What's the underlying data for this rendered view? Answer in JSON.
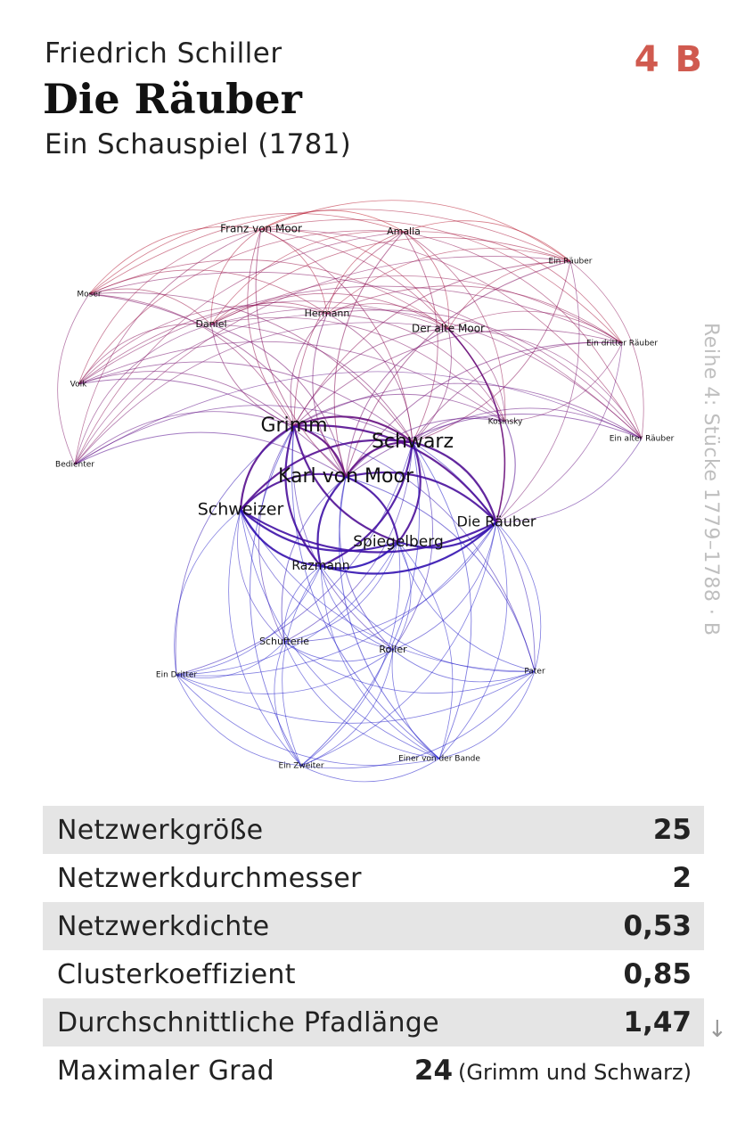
{
  "header": {
    "author": "Friedrich Schiller",
    "title": "Die Räuber",
    "subtitle": "Ein Schauspiel (1781)",
    "badge": "4 B",
    "series_note": "Reihe 4: Stücke 1779–1788 · B"
  },
  "network": {
    "colors": {
      "red": "#c0141e",
      "purple": "#5a0e8c",
      "blue": "#1a14c8"
    },
    "nodes": [
      {
        "id": "franz",
        "label": "Franz von Moor"
      },
      {
        "id": "amalia",
        "label": "Amalia"
      },
      {
        "id": "einraeuber",
        "label": "Ein Räuber"
      },
      {
        "id": "moser",
        "label": "Moser"
      },
      {
        "id": "hermann",
        "label": "Hermann"
      },
      {
        "id": "daniel",
        "label": "Daniel"
      },
      {
        "id": "altemoor",
        "label": "Der alte Moor"
      },
      {
        "id": "dritterraeuber",
        "label": "Ein dritter Räuber"
      },
      {
        "id": "volk",
        "label": "Volk"
      },
      {
        "id": "kosinsky",
        "label": "Kosinsky"
      },
      {
        "id": "grimm",
        "label": "Grimm"
      },
      {
        "id": "schwarz",
        "label": "Schwarz"
      },
      {
        "id": "einalter",
        "label": "Ein alter Räuber"
      },
      {
        "id": "bedienter",
        "label": "Bedienter"
      },
      {
        "id": "karl",
        "label": "Karl von Moor"
      },
      {
        "id": "schweizer",
        "label": "Schweizer"
      },
      {
        "id": "dieraeuber",
        "label": "Die Räuber"
      },
      {
        "id": "spiegelberg",
        "label": "Spiegelberg"
      },
      {
        "id": "razmann",
        "label": "Razmann"
      },
      {
        "id": "schufterle",
        "label": "Schufterle"
      },
      {
        "id": "roller",
        "label": "Roller"
      },
      {
        "id": "eindritter",
        "label": "Ein Dritter"
      },
      {
        "id": "pater",
        "label": "Pater"
      },
      {
        "id": "einer",
        "label": "Einer von der Bande"
      },
      {
        "id": "einzweiter",
        "label": "Ein Zweiter"
      }
    ]
  },
  "stats": [
    {
      "label": "Netzwerkgröße",
      "value": "25"
    },
    {
      "label": "Netzwerkdurchmesser",
      "value": "2"
    },
    {
      "label": "Netzwerkdichte",
      "value": "0,53"
    },
    {
      "label": "Clusterkoeffizient",
      "value": "0,85"
    },
    {
      "label": "Durchschnittliche Pfadlänge",
      "value": "1,47"
    },
    {
      "label": "Maximaler Grad",
      "value": "24",
      "extra": "(Grimm und Schwarz)"
    }
  ],
  "icons": {
    "trend": "arrow-down-icon"
  },
  "arrow_glyph": "↓"
}
